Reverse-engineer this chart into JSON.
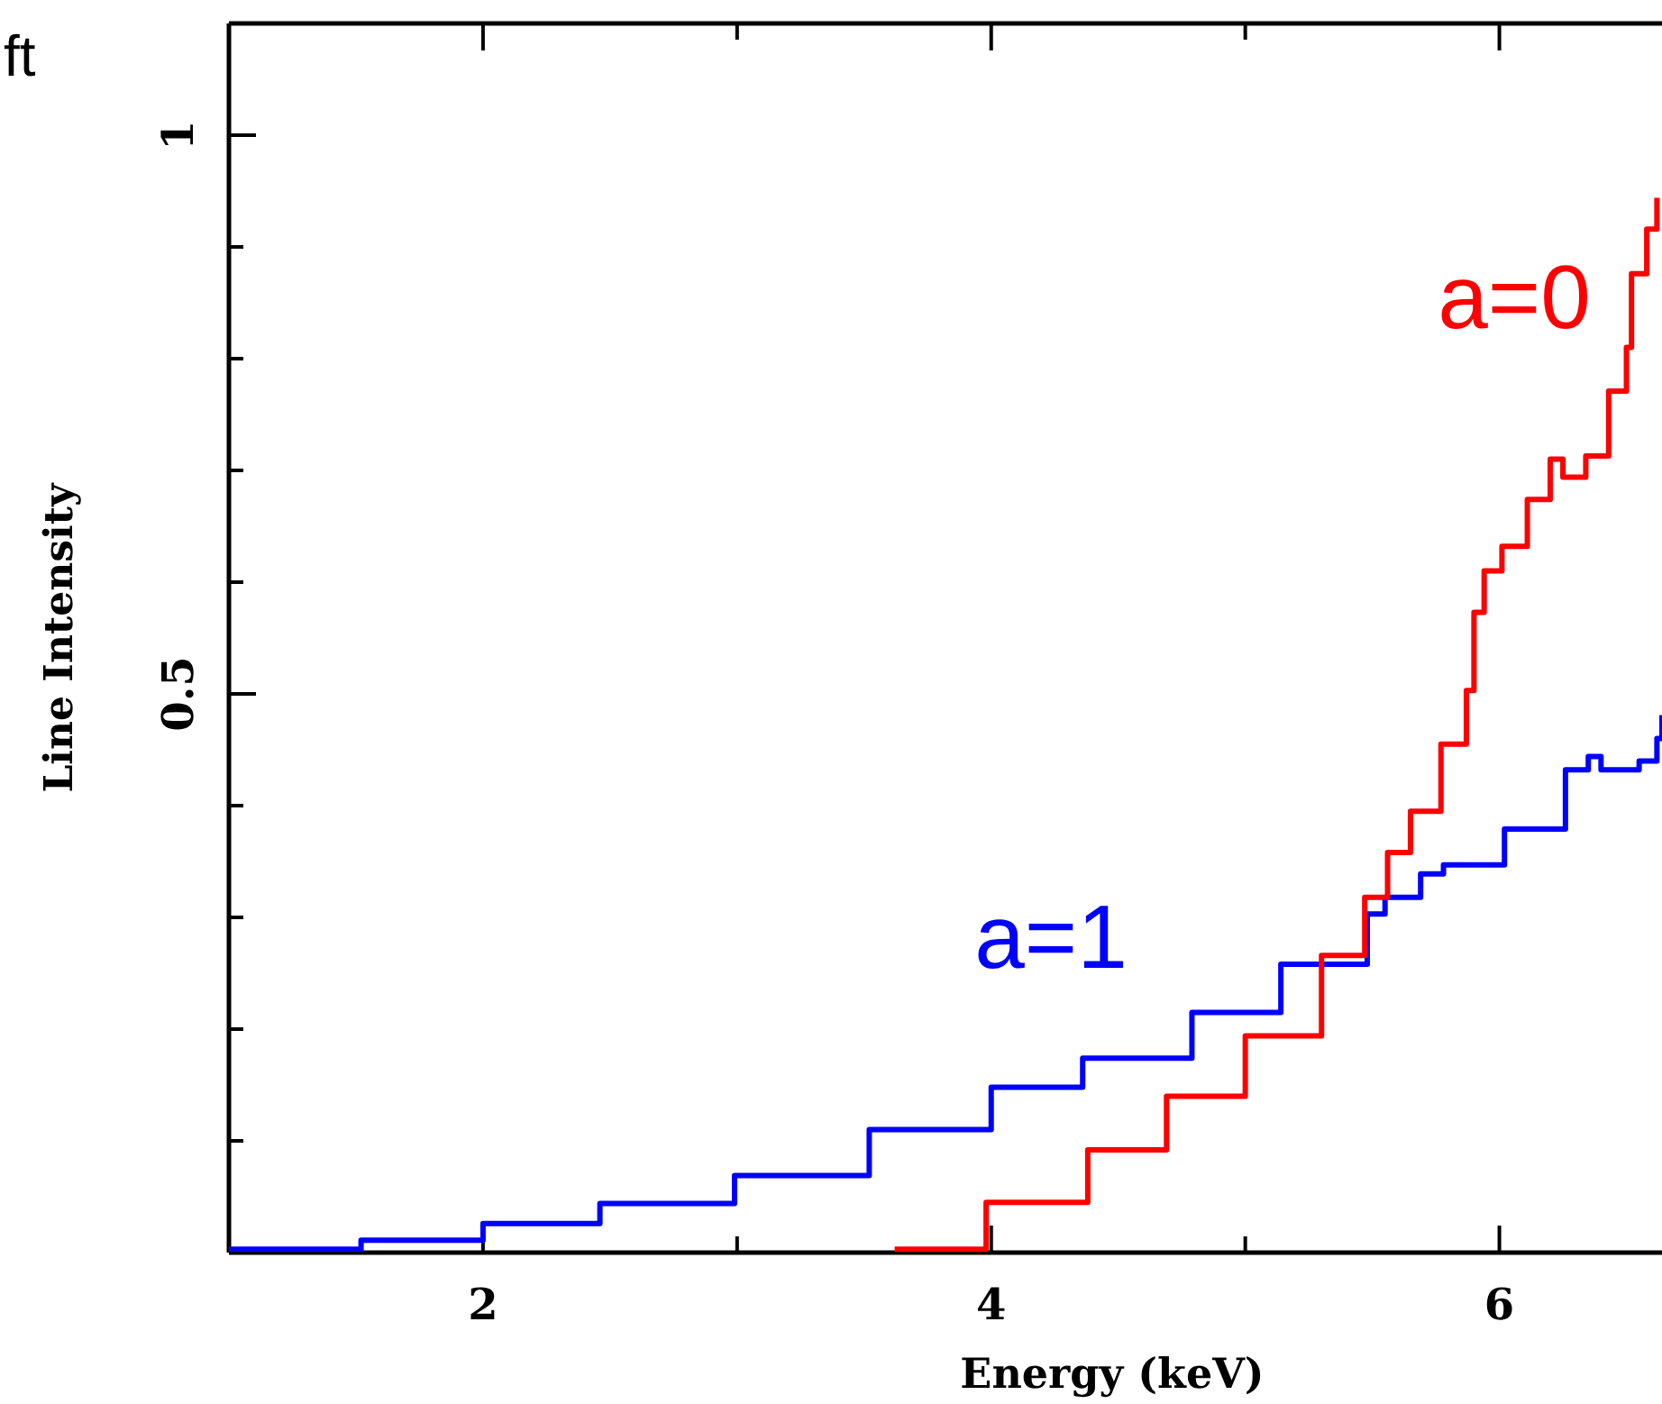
{
  "chart_data": {
    "type": "step",
    "xlabel": "Energy (keV)",
    "ylabel": "Line Intensity",
    "annotations": [
      "ft"
    ],
    "xlim": [
      1,
      6.64
    ],
    "ylim": [
      0,
      1.1
    ],
    "xticks": [
      2,
      {
        "value": 3,
        "label": null
      },
      4,
      {
        "value": 5,
        "label": null
      },
      6
    ],
    "yticks": [
      {
        "value": 0.1,
        "label": null
      },
      {
        "value": 0.2,
        "label": null
      },
      {
        "value": 0.3,
        "label": null
      },
      {
        "value": 0.4,
        "label": null
      },
      0.5,
      {
        "value": 0.6,
        "label": null
      },
      {
        "value": 0.7,
        "label": null
      },
      {
        "value": 0.8,
        "label": null
      },
      {
        "value": 0.9,
        "label": null
      },
      1
    ],
    "grid": false,
    "legend": false,
    "series": [
      {
        "name": "a=1",
        "color": "#0000ff",
        "x": [
          1,
          1.52,
          2,
          2.46,
          2.99,
          3.52,
          4,
          4.36,
          4.79,
          5.14,
          5.48,
          5.55,
          5.69,
          5.78,
          6.02,
          6.26,
          6.35,
          6.4,
          6.55,
          6.62,
          6.64
        ],
        "values": [
          0.003,
          0.011,
          0.026,
          0.044,
          0.069,
          0.11,
          0.148,
          0.174,
          0.215,
          0.258,
          0.303,
          0.318,
          0.339,
          0.347,
          0.379,
          0.432,
          0.444,
          0.432,
          0.44,
          0.46,
          0.481
        ]
      },
      {
        "name": "a=0",
        "color": "#ff0000",
        "x": [
          3.62,
          3.98,
          4.38,
          4.69,
          5,
          5.3,
          5.47,
          5.56,
          5.65,
          5.77,
          5.87,
          5.9,
          5.94,
          6.01,
          6.11,
          6.2,
          6.25,
          6.34,
          6.43,
          6.5,
          6.52,
          6.58,
          6.62
        ],
        "values": [
          0.003,
          0.045,
          0.092,
          0.14,
          0.194,
          0.266,
          0.318,
          0.358,
          0.395,
          0.455,
          0.503,
          0.573,
          0.61,
          0.632,
          0.674,
          0.71,
          0.694,
          0.713,
          0.771,
          0.81,
          0.876,
          0.916,
          0.944
        ]
      }
    ]
  }
}
